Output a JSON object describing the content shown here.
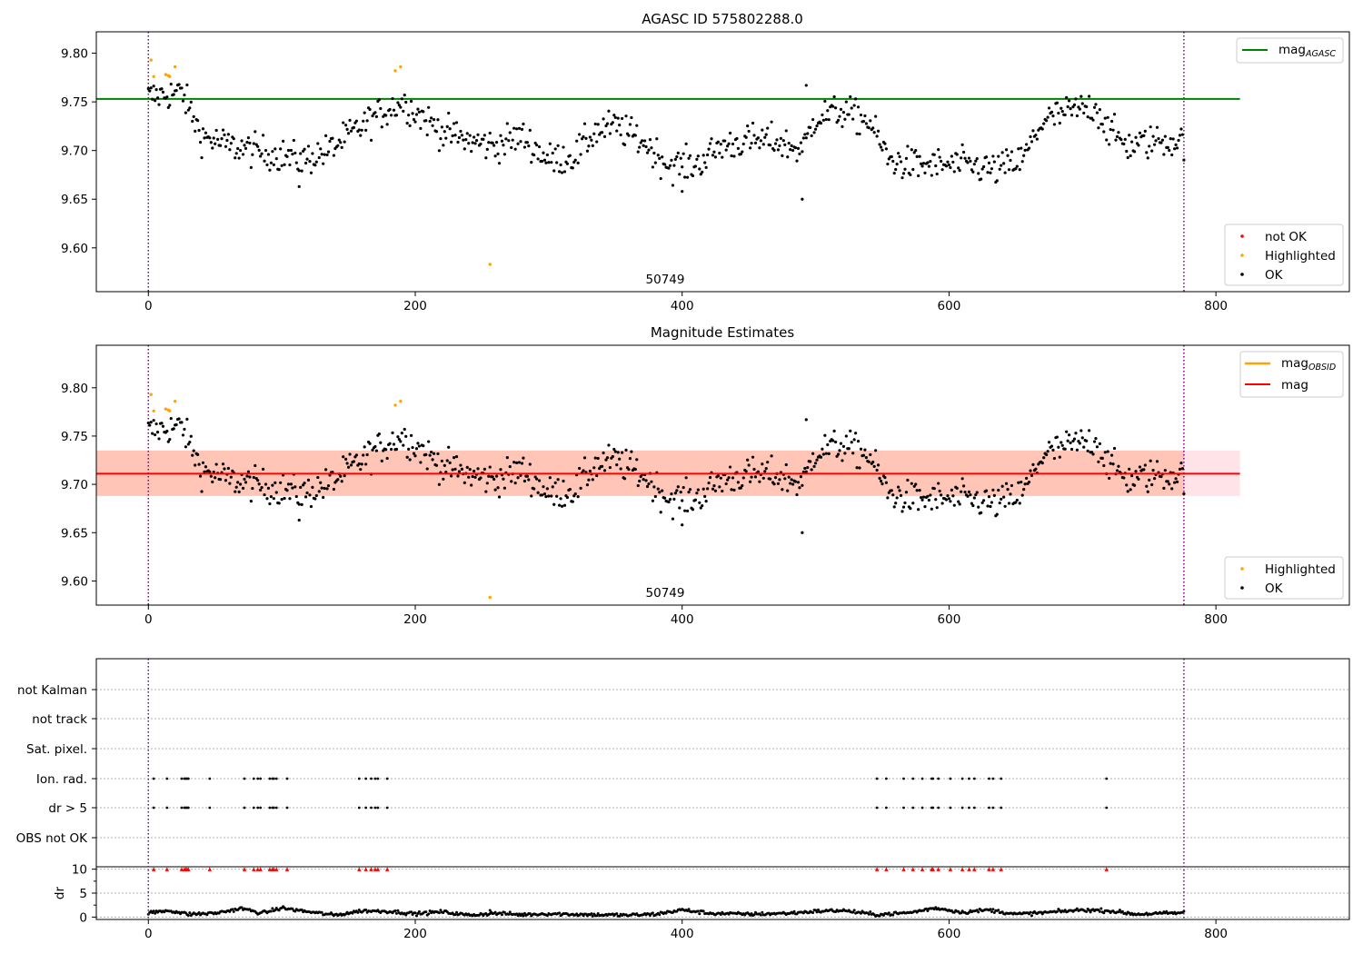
{
  "chart_data": [
    {
      "type": "scatter",
      "title": "AGASC ID 575802288.0",
      "annotation": "50749",
      "xlim": [
        -39,
        900
      ],
      "ylim": [
        9.555,
        9.822
      ],
      "xticks": [
        0,
        200,
        400,
        600,
        800
      ],
      "yticks": [
        9.6,
        9.65,
        9.7,
        9.75,
        9.8
      ],
      "ytick_labels": [
        "9.60",
        "9.65",
        "9.70",
        "9.75",
        "9.80"
      ],
      "vlines_dotted": [
        0,
        776
      ],
      "line_series": [
        {
          "name": "mag",
          "subscript": "AGASC",
          "color": "#008000",
          "y": 9.753,
          "x_range": [
            -39,
            818
          ]
        }
      ],
      "point_series": [
        {
          "name": "not OK",
          "color": "#ff0000",
          "points": []
        },
        {
          "name": "Highlighted",
          "color": "#ffa500",
          "points": [
            [
              2,
              9.793
            ],
            [
              4,
              9.776
            ],
            [
              13,
              9.778
            ],
            [
              15,
              9.777
            ],
            [
              16,
              9.776
            ],
            [
              20,
              9.786
            ],
            [
              185,
              9.782
            ],
            [
              189,
              9.786
            ],
            [
              256,
              9.583
            ]
          ]
        },
        {
          "name": "OK",
          "color": "#000000",
          "summary_segments": [
            [
              0,
              9.755
            ],
            [
              25,
              9.76
            ],
            [
              40,
              9.715
            ],
            [
              60,
              9.705
            ],
            [
              80,
              9.7
            ],
            [
              100,
              9.695
            ],
            [
              115,
              9.69
            ],
            [
              135,
              9.7
            ],
            [
              150,
              9.715
            ],
            [
              170,
              9.735
            ],
            [
              190,
              9.75
            ],
            [
              205,
              9.735
            ],
            [
              220,
              9.72
            ],
            [
              240,
              9.71
            ],
            [
              260,
              9.705
            ],
            [
              280,
              9.715
            ],
            [
              300,
              9.69
            ],
            [
              320,
              9.695
            ],
            [
              335,
              9.72
            ],
            [
              350,
              9.725
            ],
            [
              370,
              9.71
            ],
            [
              390,
              9.685
            ],
            [
              410,
              9.685
            ],
            [
              430,
              9.705
            ],
            [
              450,
              9.71
            ],
            [
              470,
              9.71
            ],
            [
              490,
              9.7
            ],
            [
              500,
              9.735
            ],
            [
              520,
              9.74
            ],
            [
              540,
              9.73
            ],
            [
              555,
              9.69
            ],
            [
              575,
              9.685
            ],
            [
              595,
              9.685
            ],
            [
              615,
              9.685
            ],
            [
              635,
              9.68
            ],
            [
              655,
              9.69
            ],
            [
              670,
              9.73
            ],
            [
              690,
              9.74
            ],
            [
              710,
              9.745
            ],
            [
              720,
              9.72
            ],
            [
              735,
              9.705
            ],
            [
              755,
              9.71
            ],
            [
              776,
              9.71
            ]
          ],
          "outliers": [
            [
              490,
              9.65
            ],
            [
              400,
              9.658
            ],
            [
              113,
              9.663
            ],
            [
              493,
              9.767
            ]
          ]
        }
      ],
      "legends": [
        {
          "position": "upper right",
          "entries": [
            "mag_AGASC"
          ]
        },
        {
          "position": "lower right",
          "entries": [
            "not OK",
            "Highlighted",
            "OK"
          ]
        }
      ]
    },
    {
      "type": "scatter",
      "title": "Magnitude Estimates",
      "annotation": "50749",
      "xlim": [
        -39,
        900
      ],
      "ylim": [
        9.575,
        9.844
      ],
      "xticks": [
        0,
        200,
        400,
        600,
        800
      ],
      "yticks": [
        9.6,
        9.65,
        9.7,
        9.75,
        9.8
      ],
      "ytick_labels": [
        "9.60",
        "9.65",
        "9.70",
        "9.75",
        "9.80"
      ],
      "vlines_dotted": [
        0,
        776
      ],
      "bands": [
        {
          "color": "#ffc0cb",
          "y_range": [
            9.688,
            9.735
          ],
          "x_range": [
            -39,
            818
          ]
        },
        {
          "color": "#ffa07a",
          "y_range": [
            9.688,
            9.735
          ],
          "x_range": [
            -39,
            776
          ]
        }
      ],
      "line_series": [
        {
          "name": "mag",
          "subscript": "OBSID",
          "color": "#ffa500",
          "y": null
        },
        {
          "name": "mag",
          "color": "#ff0000",
          "y": 9.711,
          "x_range": [
            -39,
            818
          ]
        }
      ],
      "point_series": [
        {
          "name": "Highlighted",
          "color": "#ffa500",
          "points": [
            [
              2,
              9.793
            ],
            [
              4,
              9.776
            ],
            [
              13,
              9.778
            ],
            [
              15,
              9.777
            ],
            [
              16,
              9.776
            ],
            [
              20,
              9.786
            ],
            [
              185,
              9.782
            ],
            [
              189,
              9.786
            ],
            [
              256,
              9.583
            ]
          ]
        },
        {
          "name": "OK",
          "color": "#000000",
          "same_as_panel": 0
        }
      ],
      "legends": [
        {
          "position": "upper right",
          "entries": [
            "mag_OBSID",
            "mag"
          ]
        },
        {
          "position": "lower right",
          "entries": [
            "Highlighted",
            "OK"
          ]
        }
      ]
    },
    {
      "type": "scatter",
      "xlim": [
        -39,
        900
      ],
      "xticks": [
        0,
        200,
        400,
        600,
        800
      ],
      "vlines_dotted": [
        0,
        776
      ],
      "flag_rows": [
        "not Kalman",
        "not track",
        "Sat. pixel.",
        "Ion. rad.",
        "dr > 5",
        "OBS not OK"
      ],
      "flag_points": {
        "Ion. rad.": [
          4,
          14,
          25,
          27,
          28,
          29,
          30,
          46,
          72,
          79,
          82,
          84,
          91,
          93,
          94,
          96,
          104,
          158,
          163,
          167,
          170,
          172,
          179,
          546,
          553,
          566,
          573,
          580,
          587,
          588,
          592,
          601,
          610,
          615,
          619,
          630,
          633,
          639,
          718
        ],
        "dr > 5": [
          4,
          14,
          25,
          27,
          28,
          29,
          30,
          46,
          72,
          79,
          82,
          84,
          91,
          93,
          94,
          96,
          104,
          158,
          163,
          167,
          170,
          172,
          179,
          546,
          553,
          566,
          573,
          580,
          587,
          588,
          592,
          601,
          610,
          615,
          619,
          630,
          633,
          639,
          718
        ]
      },
      "dr_panel": {
        "ylabel": "dr",
        "yticks": [
          0,
          5,
          10
        ],
        "ylim": [
          -0.5,
          10.5
        ],
        "capped_markers": {
          "color": "#ff0000",
          "y": 10,
          "x": [
            4,
            14,
            25,
            27,
            28,
            29,
            30,
            46,
            72,
            79,
            82,
            84,
            91,
            93,
            94,
            96,
            104,
            158,
            163,
            167,
            170,
            172,
            179,
            546,
            553,
            566,
            573,
            580,
            587,
            588,
            592,
            601,
            610,
            615,
            619,
            630,
            633,
            639,
            718
          ]
        },
        "summary_segments": [
          [
            0,
            0.8
          ],
          [
            15,
            1.4
          ],
          [
            30,
            0.6
          ],
          [
            50,
            0.8
          ],
          [
            70,
            1.8
          ],
          [
            85,
            0.8
          ],
          [
            100,
            1.9
          ],
          [
            120,
            1.1
          ],
          [
            140,
            0.4
          ],
          [
            160,
            1.3
          ],
          [
            180,
            1.2
          ],
          [
            200,
            0.7
          ],
          [
            220,
            1.1
          ],
          [
            240,
            0.4
          ],
          [
            260,
            0.8
          ],
          [
            280,
            0.5
          ],
          [
            300,
            0.7
          ],
          [
            330,
            0.5
          ],
          [
            360,
            0.4
          ],
          [
            380,
            0.6
          ],
          [
            400,
            1.5
          ],
          [
            420,
            0.8
          ],
          [
            450,
            0.6
          ],
          [
            480,
            0.8
          ],
          [
            500,
            1.2
          ],
          [
            520,
            1.4
          ],
          [
            545,
            0.5
          ],
          [
            570,
            0.9
          ],
          [
            590,
            1.9
          ],
          [
            610,
            1.0
          ],
          [
            630,
            1.5
          ],
          [
            650,
            0.6
          ],
          [
            670,
            0.9
          ],
          [
            700,
            1.5
          ],
          [
            720,
            1.3
          ],
          [
            740,
            0.6
          ],
          [
            776,
            0.9
          ]
        ]
      }
    }
  ]
}
